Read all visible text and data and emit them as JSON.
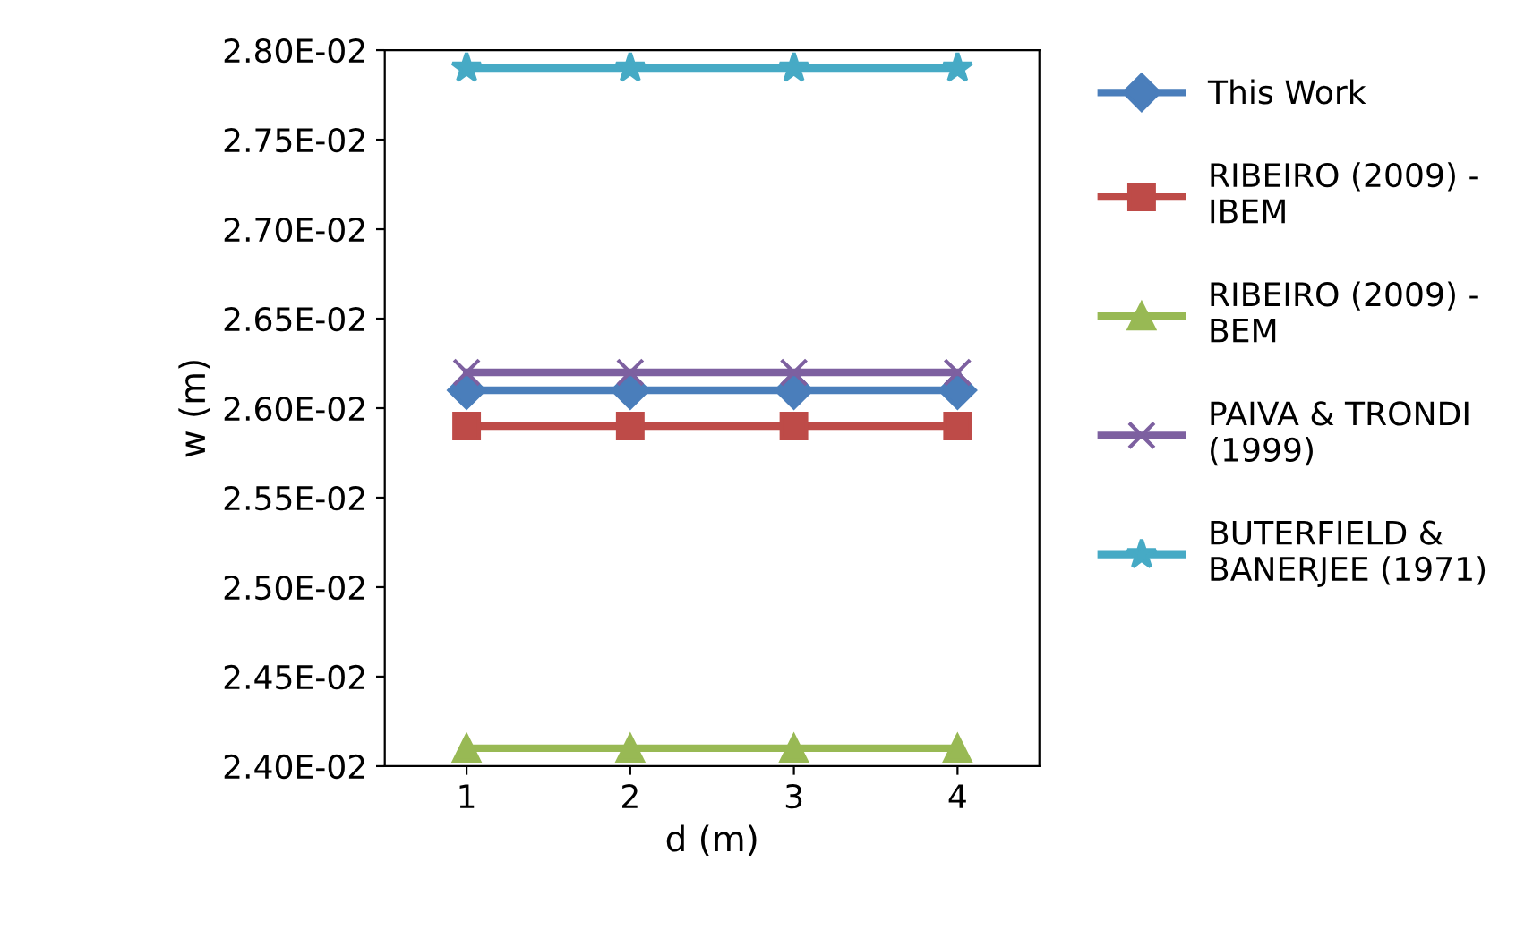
{
  "chart_data": {
    "type": "line",
    "xlabel": "d (m)",
    "ylabel": "w (m)",
    "categories": [
      "1",
      "2",
      "3",
      "4"
    ],
    "ylim": [
      0.024,
      0.028
    ],
    "yticks": [
      {
        "value": 0.024,
        "label": "2.40E-02"
      },
      {
        "value": 0.0245,
        "label": "2.45E-02"
      },
      {
        "value": 0.025,
        "label": "2.50E-02"
      },
      {
        "value": 0.0255,
        "label": "2.55E-02"
      },
      {
        "value": 0.026,
        "label": "2.60E-02"
      },
      {
        "value": 0.0265,
        "label": "2.65E-02"
      },
      {
        "value": 0.027,
        "label": "2.70E-02"
      },
      {
        "value": 0.0275,
        "label": "2.75E-02"
      },
      {
        "value": 0.028,
        "label": "2.80E-02"
      }
    ],
    "grid": false,
    "legend": "right",
    "line_style": "solid",
    "series": [
      {
        "name": "This Work",
        "color": "#4a7ebb",
        "marker": "diamond",
        "values": [
          0.0261,
          0.0261,
          0.0261,
          0.0261
        ]
      },
      {
        "name": "RIBEIRO (2009) -\nIBEM",
        "color": "#be4b48",
        "marker": "square",
        "values": [
          0.0259,
          0.0259,
          0.0259,
          0.0259
        ]
      },
      {
        "name": "RIBEIRO (2009) -\nBEM",
        "color": "#98b954",
        "marker": "triangle",
        "values": [
          0.0241,
          0.0241,
          0.0241,
          0.0241
        ]
      },
      {
        "name": "PAIVA & TRONDI\n(1999)",
        "color": "#7d60a0",
        "marker": "cross",
        "values": [
          0.0262,
          0.0262,
          0.0262,
          0.0262
        ]
      },
      {
        "name": "BUTERFIELD &\nBANERJEE (1971)",
        "color": "#46aac5",
        "marker": "star",
        "values": [
          0.0279,
          0.0279,
          0.0279,
          0.0279
        ]
      }
    ]
  }
}
